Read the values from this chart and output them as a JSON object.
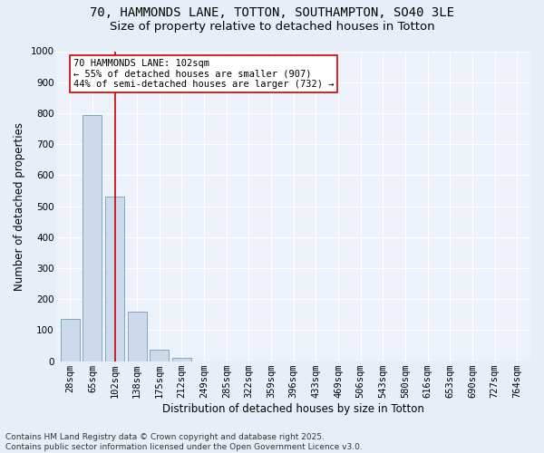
{
  "title_line1": "70, HAMMONDS LANE, TOTTON, SOUTHAMPTON, SO40 3LE",
  "title_line2": "Size of property relative to detached houses in Totton",
  "xlabel": "Distribution of detached houses by size in Totton",
  "ylabel": "Number of detached properties",
  "categories": [
    "28sqm",
    "65sqm",
    "102sqm",
    "138sqm",
    "175sqm",
    "212sqm",
    "249sqm",
    "285sqm",
    "322sqm",
    "359sqm",
    "396sqm",
    "433sqm",
    "469sqm",
    "506sqm",
    "543sqm",
    "580sqm",
    "616sqm",
    "653sqm",
    "690sqm",
    "727sqm",
    "764sqm"
  ],
  "values": [
    135,
    795,
    530,
    160,
    36,
    12,
    0,
    0,
    0,
    0,
    0,
    0,
    0,
    0,
    0,
    0,
    0,
    0,
    0,
    0,
    0
  ],
  "bar_color": "#ccdaeb",
  "bar_edgecolor": "#7ba8c8",
  "vline_x": 2,
  "vline_color": "#cc0000",
  "annotation_text": "70 HAMMONDS LANE: 102sqm\n← 55% of detached houses are smaller (907)\n44% of semi-detached houses are larger (732) →",
  "annotation_box_edgecolor": "#cc0000",
  "annotation_box_facecolor": "#ffffff",
  "ylim": [
    0,
    1000
  ],
  "yticks": [
    0,
    100,
    200,
    300,
    400,
    500,
    600,
    700,
    800,
    900,
    1000
  ],
  "footnote": "Contains HM Land Registry data © Crown copyright and database right 2025.\nContains public sector information licensed under the Open Government Licence v3.0.",
  "bg_color": "#e8eef8",
  "plot_bg_color": "#edf2fa",
  "grid_color": "#ffffff",
  "title_fontsize": 10,
  "subtitle_fontsize": 9.5,
  "axis_label_fontsize": 8.5,
  "tick_fontsize": 7.5,
  "annotation_fontsize": 7.5,
  "footnote_fontsize": 6.5
}
